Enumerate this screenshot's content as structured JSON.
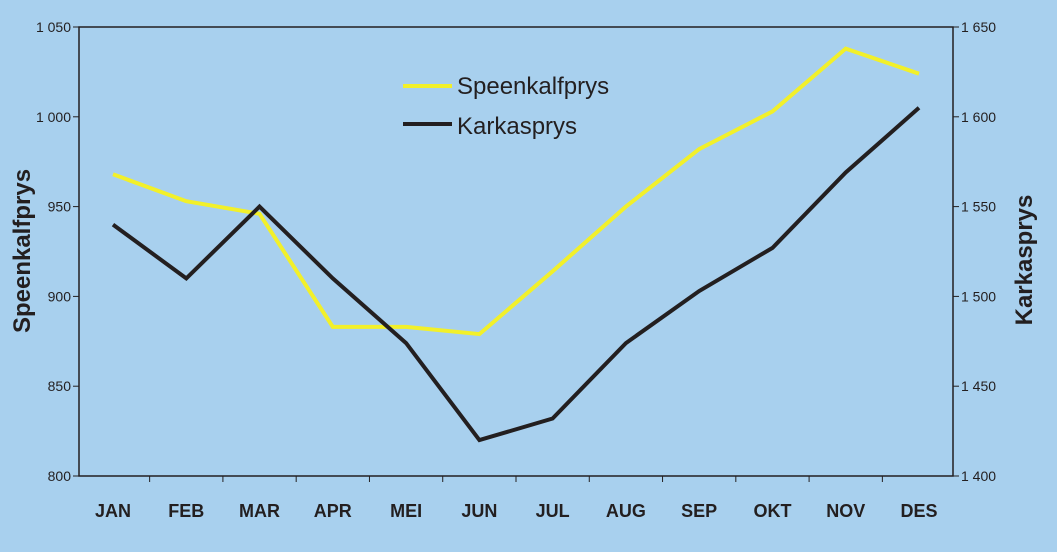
{
  "chart_data": {
    "type": "line",
    "categories": [
      "JAN",
      "FEB",
      "MAR",
      "APR",
      "MEI",
      "JUN",
      "JUL",
      "AUG",
      "SEP",
      "OKT",
      "NOV",
      "DES"
    ],
    "series": [
      {
        "name": "Speenkalfprys",
        "axis": "left",
        "color": "#f2f02a",
        "values": [
          968,
          953,
          946,
          883,
          883,
          879,
          914,
          950,
          982,
          1003,
          1038,
          1024
        ]
      },
      {
        "name": "Karkasprys",
        "axis": "right",
        "color": "#231f20",
        "values": [
          1540,
          1510,
          1550,
          1510,
          1474,
          1420,
          1432,
          1474,
          1503,
          1527,
          1569,
          1605
        ]
      }
    ],
    "ylabel_left": "Speenkalfprys",
    "ylabel_right": "Karkasprys",
    "ylim_left": [
      800,
      1050
    ],
    "ylim_right": [
      1400,
      1650
    ],
    "yticks_left": [
      "800",
      "850",
      "900",
      "950",
      "1 000",
      "1 050"
    ],
    "yticks_right": [
      "1 400",
      "1 450",
      "1 500",
      "1 550",
      "1 600",
      "1 650"
    ],
    "legend_position": "top-center",
    "grid": false
  }
}
